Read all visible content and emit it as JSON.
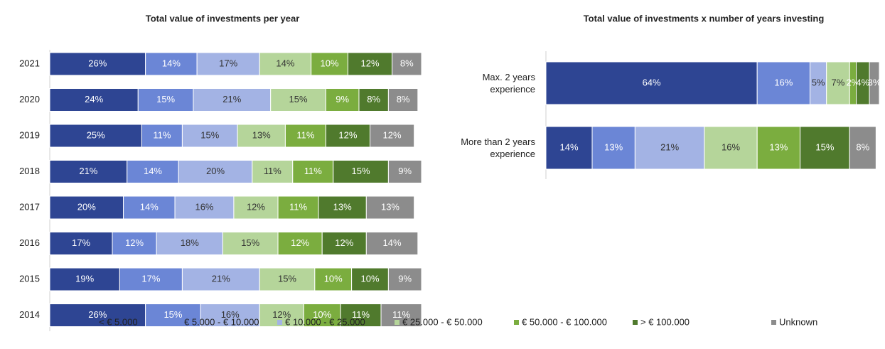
{
  "chart_data": [
    {
      "type": "stacked-hbar",
      "title": "Total value of investments per year",
      "categories": [
        "2021",
        "2020",
        "2019",
        "2018",
        "2017",
        "2016",
        "2015",
        "2014"
      ],
      "xlim": [
        0,
        101
      ],
      "series": [
        {
          "name": "< € 5.000",
          "color": "#2e4593",
          "values": [
            26,
            24,
            25,
            21,
            20,
            17,
            19,
            26
          ],
          "value_labels": [
            "26%",
            "24%",
            "25%",
            "21%",
            "20%",
            "17%",
            "19%",
            "26%"
          ]
        },
        {
          "name": "€ 5.000 - € 10.000",
          "color": "#6b86d6",
          "values": [
            14,
            15,
            11,
            14,
            14,
            12,
            17,
            15
          ],
          "value_labels": [
            "14%",
            "15%",
            "11%",
            "14%",
            "14%",
            "12%",
            "17%",
            "15%"
          ]
        },
        {
          "name": "€ 10.000 - € 25.000",
          "color": "#a3b3e4",
          "values": [
            17,
            21,
            15,
            20,
            16,
            18,
            21,
            16
          ],
          "value_labels": [
            "17%",
            "21%",
            "15%",
            "20%",
            "16%",
            "18%",
            "21%",
            "16%"
          ]
        },
        {
          "name": "€ 25.000 - € 50.000",
          "color": "#b5d59a",
          "values": [
            14,
            15,
            13,
            11,
            12,
            15,
            15,
            12
          ],
          "value_labels": [
            "14%",
            "15%",
            "13%",
            "11%",
            "12%",
            "15%",
            "15%",
            "12%"
          ]
        },
        {
          "name": "€ 50.000 - € 100.000",
          "color": "#7bad3f",
          "values": [
            10,
            9,
            11,
            11,
            11,
            12,
            10,
            10
          ],
          "value_labels": [
            "10%",
            "9%",
            "11%",
            "11%",
            "11%",
            "12%",
            "10%",
            "10%"
          ]
        },
        {
          "name": "> € 100.000",
          "color": "#507a2d",
          "values": [
            12,
            8,
            12,
            15,
            13,
            12,
            10,
            11
          ],
          "value_labels": [
            "12%",
            "8%",
            "12%",
            "15%",
            "13%",
            "12%",
            "10%",
            "11%"
          ]
        },
        {
          "name": "Unknown",
          "color": "#8c8c8c",
          "values": [
            8,
            8,
            12,
            9,
            13,
            14,
            9,
            11
          ],
          "value_labels": [
            "8%",
            "8%",
            "12%",
            "9%",
            "13%",
            "14%",
            "9%",
            "11%"
          ]
        }
      ]
    },
    {
      "type": "stacked-hbar",
      "title": "Total value of investments x number of years investing",
      "categories": [
        "Max. 2 years experience",
        "More than 2 years experience"
      ],
      "xlim": [
        0,
        101
      ],
      "series": [
        {
          "color": "#2e4593",
          "values": [
            64,
            14
          ],
          "value_labels": [
            "64%",
            "14%"
          ]
        },
        {
          "color": "#6b86d6",
          "values": [
            16,
            13
          ],
          "value_labels": [
            "16%",
            "13%"
          ]
        },
        {
          "color": "#a3b3e4",
          "values": [
            5,
            21
          ],
          "value_labels": [
            "5%",
            "21%"
          ]
        },
        {
          "color": "#b5d59a",
          "values": [
            7,
            16
          ],
          "value_labels": [
            "7%",
            "16%"
          ]
        },
        {
          "color": "#7bad3f",
          "values": [
            2,
            13
          ],
          "value_labels": [
            "2%",
            "13%"
          ]
        },
        {
          "color": "#507a2d",
          "values": [
            4,
            15
          ],
          "value_labels": [
            "4%",
            "15%"
          ]
        },
        {
          "color": "#8c8c8c",
          "values": [
            3,
            8
          ],
          "value_labels": [
            "3%",
            "8%"
          ]
        }
      ]
    }
  ]
}
